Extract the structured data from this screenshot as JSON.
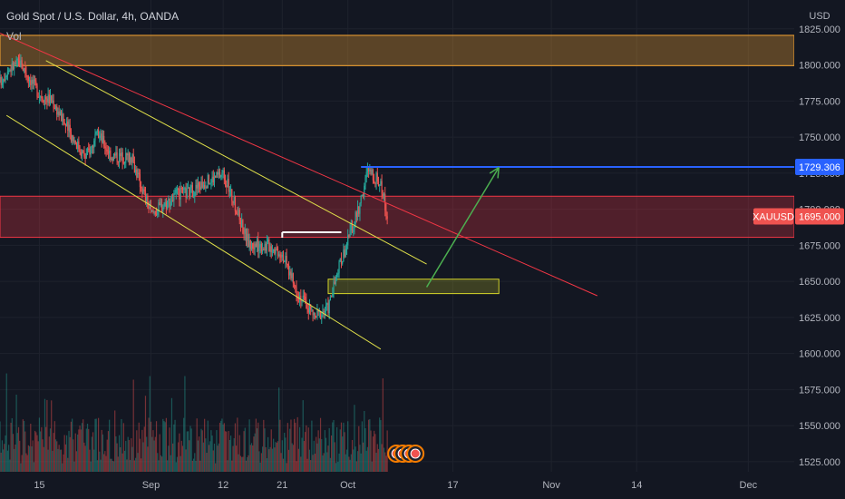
{
  "header": {
    "symbol_title": "Gold Spot / U.S. Dollar, 4h, OANDA",
    "volume_label": "Vol"
  },
  "colors": {
    "background": "#131722",
    "grid": "#1e222d",
    "up": "#26a69a",
    "down": "#ef5350",
    "resistance_zone": "#f7a531",
    "support_zone": "#f23645",
    "demand_box": "#d4d42a",
    "target_line": "#2962ff",
    "channel": "#e0e04a",
    "trendline": "#f23645",
    "arrow": "#4caf50",
    "marker": "#ffffff"
  },
  "chart_data": {
    "type": "candlestick",
    "currency": "USD",
    "y_range": [
      1518,
      1845
    ],
    "y_ticks": [
      1525,
      1550,
      1575,
      1600,
      1625,
      1650,
      1675,
      1700,
      1725,
      1750,
      1775,
      1800,
      1825
    ],
    "y_tick_labels": [
      "1525.000",
      "1550.000",
      "1575.000",
      "1600.000",
      "1625.000",
      "1650.000",
      "1675.000",
      "1700.000",
      "1725.000",
      "1750.000",
      "1775.000",
      "1800.000",
      "1825.000"
    ],
    "x_range": [
      "2022-08-09",
      "2022-12-08"
    ],
    "x_ticks": [
      "2022-08-15",
      "2022-09-01",
      "2022-09-12",
      "2022-09-21",
      "2022-10-01",
      "2022-10-17",
      "2022-11-01",
      "2022-11-14",
      "2022-12-01"
    ],
    "x_tick_labels": [
      "15",
      "Sep",
      "12",
      "21",
      "Oct",
      "17",
      "Nov",
      "14",
      "Dec"
    ],
    "price_path": [
      [
        "2022-08-09",
        1788
      ],
      [
        "2022-08-10",
        1796
      ],
      [
        "2022-08-12",
        1802
      ],
      [
        "2022-08-15",
        1780
      ],
      [
        "2022-08-17",
        1775
      ],
      [
        "2022-08-19",
        1758
      ],
      [
        "2022-08-22",
        1736
      ],
      [
        "2022-08-24",
        1752
      ],
      [
        "2022-08-26",
        1737
      ],
      [
        "2022-08-29",
        1736
      ],
      [
        "2022-08-31",
        1710
      ],
      [
        "2022-09-01",
        1697
      ],
      [
        "2022-09-05",
        1710
      ],
      [
        "2022-09-07",
        1712
      ],
      [
        "2022-09-09",
        1718
      ],
      [
        "2022-09-12",
        1725
      ],
      [
        "2022-09-14",
        1700
      ],
      [
        "2022-09-16",
        1675
      ],
      [
        "2022-09-19",
        1675
      ],
      [
        "2022-09-21",
        1670
      ],
      [
        "2022-09-23",
        1645
      ],
      [
        "2022-09-26",
        1625
      ],
      [
        "2022-09-28",
        1632
      ],
      [
        "2022-09-30",
        1665
      ],
      [
        "2022-10-03",
        1705
      ],
      [
        "2022-10-04",
        1727
      ],
      [
        "2022-10-06",
        1718
      ],
      [
        "2022-10-07",
        1695
      ]
    ],
    "volume_range": [
      0,
      140
    ],
    "last_price": 1695.0,
    "last_price_label": "1695.000",
    "symbol_tag": "XAUUSD",
    "target_price": 1729.306,
    "target_price_label": "1729.306",
    "zones": [
      {
        "name": "resistance-zone",
        "from": 1799.5,
        "to": 1820.5,
        "x_start": "2022-08-09",
        "x_end": "2022-12-08"
      },
      {
        "name": "support-zone",
        "from": 1680.5,
        "to": 1709.0,
        "x_start": "2022-08-09",
        "x_end": "2022-12-08"
      },
      {
        "name": "demand-box",
        "from": 1641.5,
        "to": 1651.5,
        "x_start": "2022-09-28",
        "x_end": "2022-10-24"
      }
    ],
    "lines": [
      {
        "name": "descending-trendline",
        "p1": [
          "2022-08-09",
          1822
        ],
        "p2": [
          "2022-11-08",
          1640
        ]
      },
      {
        "name": "channel-upper",
        "p1": [
          "2022-08-16",
          1803
        ],
        "p2": [
          "2022-10-13",
          1662
        ]
      },
      {
        "name": "channel-lower",
        "p1": [
          "2022-08-10",
          1765
        ],
        "p2": [
          "2022-10-06",
          1603
        ]
      },
      {
        "name": "target-line",
        "p1": [
          "2022-10-03",
          1729.306
        ],
        "p2": [
          "2022-12-08",
          1729.306
        ]
      },
      {
        "name": "breakout-marker",
        "p1": [
          "2022-09-21",
          1684
        ],
        "p2": [
          "2022-09-30",
          1684
        ]
      }
    ],
    "arrow": {
      "from": [
        "2022-10-13",
        1646
      ],
      "to": [
        "2022-10-24",
        1729
      ]
    },
    "event_icons": 4
  }
}
